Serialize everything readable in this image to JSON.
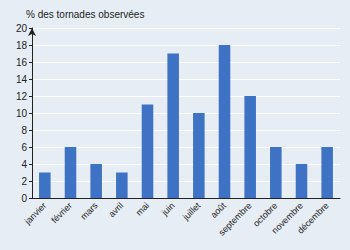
{
  "chart_data": {
    "type": "bar",
    "ylabel": "% des tornades observées",
    "categories": [
      "janvier",
      "février",
      "mars",
      "avril",
      "mai",
      "juin",
      "juillet",
      "août",
      "septembre",
      "octobre",
      "novembre",
      "décembre"
    ],
    "values": [
      3,
      6,
      4,
      3,
      11,
      17,
      10,
      18,
      12,
      6,
      4,
      6
    ],
    "color": "#3d72c4",
    "ylim": [
      0,
      20
    ],
    "yticks": [
      0,
      2,
      4,
      6,
      8,
      10,
      12,
      14,
      16,
      18,
      20
    ],
    "grid": true
  }
}
